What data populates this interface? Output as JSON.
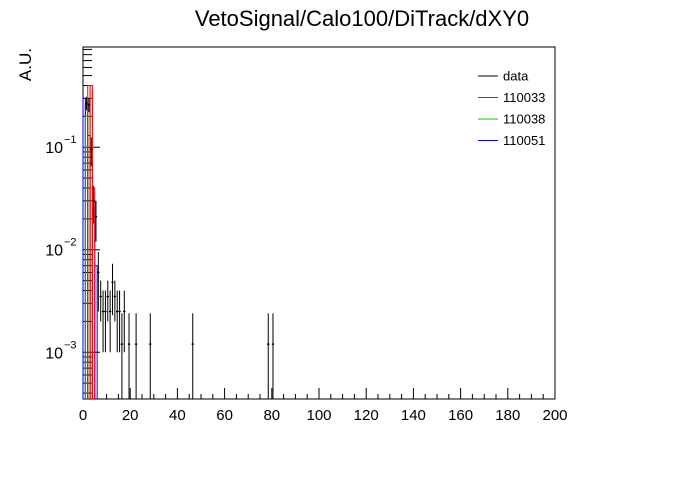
{
  "chart_data": {
    "type": "histogram",
    "title": "VetoSignal/Calo100/DiTrack/dXY0",
    "xlabel": "",
    "ylabel": "A.U.",
    "xlim": [
      0,
      200
    ],
    "ylim": [
      0.00035,
      0.95
    ],
    "ylog": true,
    "grid": false,
    "legend_position": "top-right",
    "x_ticks": [
      "0",
      "20",
      "40",
      "60",
      "80",
      "100",
      "120",
      "140",
      "160",
      "180",
      "200"
    ],
    "y_ticks": [
      {
        "base": "10",
        "exp": "−1",
        "value": 0.1
      },
      {
        "base": "10",
        "exp": "−2",
        "value": 0.01
      },
      {
        "base": "10",
        "exp": "−3",
        "value": 0.001
      }
    ],
    "legend": [
      "data",
      "110033",
      "110038",
      "110051"
    ],
    "series": [
      {
        "name": "data",
        "color": "#000000",
        "style": "points",
        "bin_width": 1,
        "x": [
          1,
          2,
          3,
          4,
          5,
          6,
          7,
          8,
          9,
          10,
          11,
          12,
          13,
          14,
          15,
          16,
          17,
          19,
          22,
          28,
          46,
          78,
          80
        ],
        "y": [
          0.27,
          0.26,
          0.095,
          0.03,
          0.021,
          0.006,
          0.0035,
          0.0025,
          0.0025,
          0.0035,
          0.0025,
          0.0048,
          0.0035,
          0.0025,
          0.0025,
          0.0012,
          0.0025,
          0.0012,
          0.0012,
          0.0012,
          0.0012,
          0.0012,
          0.0012
        ],
        "err": [
          0.04,
          0.04,
          0.03,
          0.012,
          0.009,
          0.0035,
          0.0015,
          0.0015,
          0.0015,
          0.0015,
          0.0015,
          0.0025,
          0.0015,
          0.0015,
          0.0015,
          0.0012,
          0.0015,
          0.0012,
          0.0012,
          0.0012,
          0.0012,
          0.0012,
          0.0012
        ]
      },
      {
        "name": "110033",
        "color": "#ff0000",
        "style": "step",
        "bin_width": 1,
        "x": [
          2,
          3,
          4
        ],
        "y": [
          0.4,
          0.4,
          0.04
        ]
      },
      {
        "name": "110038",
        "color": "#00cc00",
        "style": "step",
        "bin_width": 1,
        "x": [
          1,
          2,
          3
        ],
        "y": [
          0.2,
          0.2,
          0.04
        ]
      },
      {
        "name": "110051",
        "color": "#0000ff",
        "style": "step",
        "bin_width": 1,
        "x": [
          0,
          1,
          2,
          3,
          4,
          5
        ],
        "y": [
          0.3,
          0.26,
          0.13,
          0.07,
          0.03,
          0.007
        ]
      }
    ]
  }
}
